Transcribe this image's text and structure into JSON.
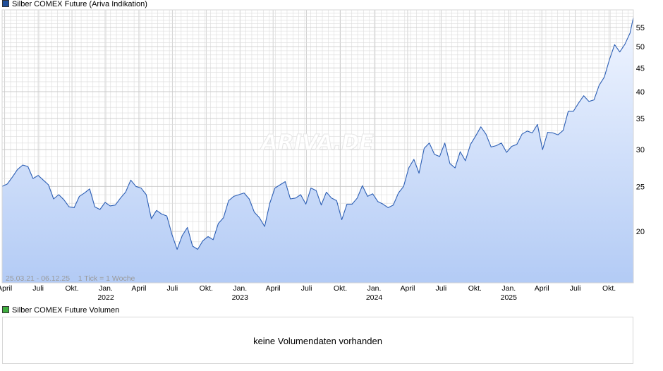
{
  "legend": {
    "price_label": "Silber COMEX Future (Ariva Indikation)",
    "price_color": "#1f4e9a",
    "volume_label": "Silber COMEX Future Volumen",
    "volume_color": "#3fae3f"
  },
  "watermark": "ARIVA.DE",
  "range_info": "25.03.21 - 06.12.25    1 Tick = 1 Woche",
  "volume_panel": {
    "message": "keine Volumendaten vorhanden"
  },
  "colors": {
    "line": "#2d5fb4",
    "fill_top": "#f0f5ff",
    "fill_bottom": "#b3cbf5",
    "grid": "#dcdcdc"
  },
  "chart_data": {
    "type": "area",
    "title": "Silber COMEX Future (Ariva Indikation)",
    "y_scale": "log",
    "ylim": [
      15.5,
      60
    ],
    "y_ticks": [
      20,
      25,
      30,
      35,
      40,
      45,
      50,
      55
    ],
    "x_range": [
      "2021-03-25",
      "2025-12-06"
    ],
    "x_ticks": [
      {
        "date": "2021-04-01",
        "label": "April",
        "year": ""
      },
      {
        "date": "2021-07-01",
        "label": "Juli",
        "year": ""
      },
      {
        "date": "2021-10-01",
        "label": "Okt.",
        "year": ""
      },
      {
        "date": "2022-01-01",
        "label": "Jan.",
        "year": "2022"
      },
      {
        "date": "2022-04-01",
        "label": "April",
        "year": ""
      },
      {
        "date": "2022-07-01",
        "label": "Juli",
        "year": ""
      },
      {
        "date": "2022-10-01",
        "label": "Okt.",
        "year": ""
      },
      {
        "date": "2023-01-01",
        "label": "Jan.",
        "year": "2023"
      },
      {
        "date": "2023-04-01",
        "label": "April",
        "year": ""
      },
      {
        "date": "2023-07-01",
        "label": "Juli",
        "year": ""
      },
      {
        "date": "2023-10-01",
        "label": "Okt.",
        "year": ""
      },
      {
        "date": "2024-01-01",
        "label": "Jan.",
        "year": "2024"
      },
      {
        "date": "2024-04-01",
        "label": "April",
        "year": ""
      },
      {
        "date": "2024-07-01",
        "label": "Juli",
        "year": ""
      },
      {
        "date": "2024-10-01",
        "label": "Okt.",
        "year": ""
      },
      {
        "date": "2025-01-01",
        "label": "Jan.",
        "year": "2025"
      },
      {
        "date": "2025-04-01",
        "label": "April",
        "year": ""
      },
      {
        "date": "2025-07-01",
        "label": "Juli",
        "year": ""
      },
      {
        "date": "2025-10-01",
        "label": "Okt.",
        "year": ""
      }
    ],
    "series": [
      {
        "name": "Silber COMEX Future (Ariva Indikation)",
        "points": [
          [
            "2021-03-25",
            25.0
          ],
          [
            "2021-04-08",
            25.3
          ],
          [
            "2021-04-22",
            26.2
          ],
          [
            "2021-05-06",
            27.2
          ],
          [
            "2021-05-20",
            27.8
          ],
          [
            "2021-06-03",
            27.6
          ],
          [
            "2021-06-17",
            26.0
          ],
          [
            "2021-07-01",
            26.4
          ],
          [
            "2021-07-15",
            25.8
          ],
          [
            "2021-07-29",
            25.2
          ],
          [
            "2021-08-12",
            23.5
          ],
          [
            "2021-08-26",
            24.0
          ],
          [
            "2021-09-09",
            23.4
          ],
          [
            "2021-09-23",
            22.6
          ],
          [
            "2021-10-07",
            22.5
          ],
          [
            "2021-10-21",
            23.8
          ],
          [
            "2021-11-04",
            24.2
          ],
          [
            "2021-11-18",
            24.7
          ],
          [
            "2021-12-02",
            22.6
          ],
          [
            "2021-12-16",
            22.3
          ],
          [
            "2021-12-30",
            23.1
          ],
          [
            "2022-01-13",
            22.7
          ],
          [
            "2022-01-27",
            22.8
          ],
          [
            "2022-02-10",
            23.6
          ],
          [
            "2022-02-24",
            24.3
          ],
          [
            "2022-03-10",
            25.8
          ],
          [
            "2022-03-24",
            25.0
          ],
          [
            "2022-04-07",
            24.8
          ],
          [
            "2022-04-21",
            24.0
          ],
          [
            "2022-05-05",
            21.3
          ],
          [
            "2022-05-19",
            22.2
          ],
          [
            "2022-06-02",
            21.8
          ],
          [
            "2022-06-16",
            21.6
          ],
          [
            "2022-06-30",
            19.7
          ],
          [
            "2022-07-14",
            18.3
          ],
          [
            "2022-07-28",
            19.6
          ],
          [
            "2022-08-11",
            20.4
          ],
          [
            "2022-08-25",
            18.6
          ],
          [
            "2022-09-08",
            18.3
          ],
          [
            "2022-09-22",
            19.1
          ],
          [
            "2022-10-06",
            19.5
          ],
          [
            "2022-10-20",
            19.2
          ],
          [
            "2022-11-03",
            20.8
          ],
          [
            "2022-11-17",
            21.4
          ],
          [
            "2022-12-01",
            23.3
          ],
          [
            "2022-12-15",
            23.8
          ],
          [
            "2022-12-29",
            24.0
          ],
          [
            "2023-01-12",
            24.2
          ],
          [
            "2023-01-26",
            23.5
          ],
          [
            "2023-02-09",
            22.0
          ],
          [
            "2023-02-23",
            21.4
          ],
          [
            "2023-03-09",
            20.5
          ],
          [
            "2023-03-23",
            23.0
          ],
          [
            "2023-04-06",
            24.8
          ],
          [
            "2023-04-20",
            25.2
          ],
          [
            "2023-05-04",
            25.6
          ],
          [
            "2023-05-18",
            23.5
          ],
          [
            "2023-06-01",
            23.6
          ],
          [
            "2023-06-15",
            24.0
          ],
          [
            "2023-06-29",
            22.9
          ],
          [
            "2023-07-13",
            24.8
          ],
          [
            "2023-07-27",
            24.5
          ],
          [
            "2023-08-10",
            22.8
          ],
          [
            "2023-08-24",
            24.3
          ],
          [
            "2023-09-07",
            23.6
          ],
          [
            "2023-09-21",
            23.3
          ],
          [
            "2023-10-05",
            21.2
          ],
          [
            "2023-10-19",
            22.9
          ],
          [
            "2023-11-02",
            22.9
          ],
          [
            "2023-11-16",
            23.6
          ],
          [
            "2023-11-30",
            25.1
          ],
          [
            "2023-12-14",
            23.8
          ],
          [
            "2023-12-28",
            24.1
          ],
          [
            "2024-01-11",
            23.2
          ],
          [
            "2024-01-25",
            22.9
          ],
          [
            "2024-02-08",
            22.5
          ],
          [
            "2024-02-22",
            22.8
          ],
          [
            "2024-03-07",
            24.2
          ],
          [
            "2024-03-21",
            25.0
          ],
          [
            "2024-04-04",
            27.4
          ],
          [
            "2024-04-18",
            28.6
          ],
          [
            "2024-05-02",
            26.7
          ],
          [
            "2024-05-16",
            30.2
          ],
          [
            "2024-05-30",
            31.0
          ],
          [
            "2024-06-13",
            29.3
          ],
          [
            "2024-06-27",
            29.0
          ],
          [
            "2024-07-11",
            31.0
          ],
          [
            "2024-07-25",
            28.0
          ],
          [
            "2024-08-08",
            27.4
          ],
          [
            "2024-08-22",
            29.7
          ],
          [
            "2024-09-05",
            28.4
          ],
          [
            "2024-09-19",
            30.8
          ],
          [
            "2024-10-03",
            32.1
          ],
          [
            "2024-10-17",
            33.6
          ],
          [
            "2024-10-31",
            32.4
          ],
          [
            "2024-11-14",
            30.4
          ],
          [
            "2024-11-28",
            30.6
          ],
          [
            "2024-12-12",
            31.0
          ],
          [
            "2024-12-26",
            29.6
          ],
          [
            "2025-01-09",
            30.5
          ],
          [
            "2025-01-23",
            30.8
          ],
          [
            "2025-02-06",
            32.4
          ],
          [
            "2025-02-20",
            32.9
          ],
          [
            "2025-03-06",
            32.6
          ],
          [
            "2025-03-20",
            34.0
          ],
          [
            "2025-04-03",
            30.0
          ],
          [
            "2025-04-17",
            32.7
          ],
          [
            "2025-05-01",
            32.6
          ],
          [
            "2025-05-15",
            32.3
          ],
          [
            "2025-05-29",
            33.0
          ],
          [
            "2025-06-12",
            36.3
          ],
          [
            "2025-06-26",
            36.3
          ],
          [
            "2025-07-10",
            37.8
          ],
          [
            "2025-07-24",
            39.2
          ],
          [
            "2025-08-07",
            38.1
          ],
          [
            "2025-08-21",
            38.4
          ],
          [
            "2025-09-04",
            41.3
          ],
          [
            "2025-09-18",
            43.0
          ],
          [
            "2025-10-02",
            46.9
          ],
          [
            "2025-10-16",
            50.5
          ],
          [
            "2025-10-30",
            48.7
          ],
          [
            "2025-11-13",
            50.6
          ],
          [
            "2025-11-27",
            53.5
          ],
          [
            "2025-12-06",
            57.8
          ]
        ]
      }
    ]
  }
}
